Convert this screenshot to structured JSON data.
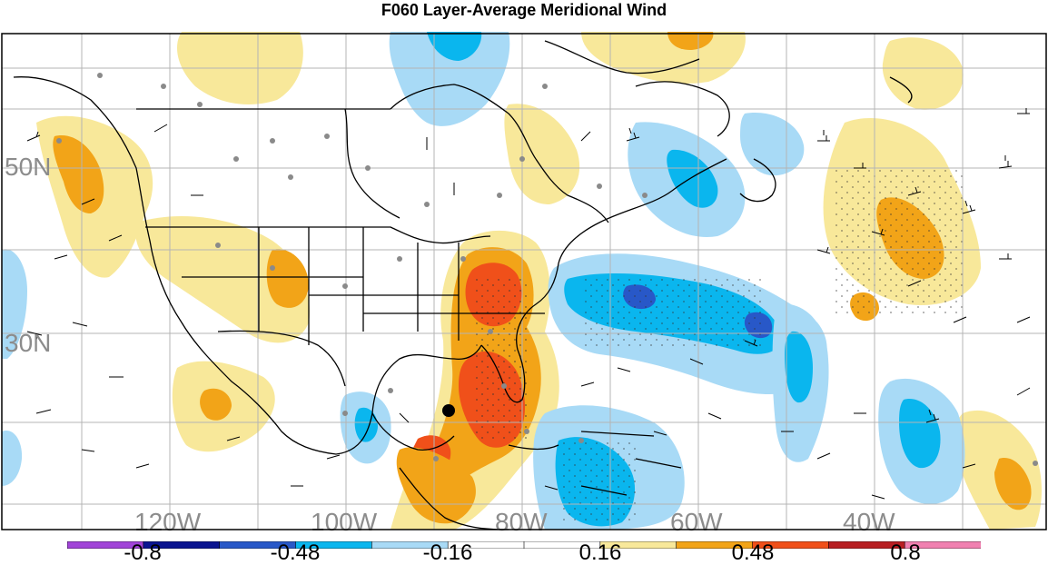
{
  "title": "F060 Layer-Average Meridional Wind",
  "lat_labels": [
    "50N",
    "30N"
  ],
  "lon_labels": [
    "120W",
    "100W",
    "80W",
    "60W",
    "40W"
  ],
  "colorbar": {
    "colors": [
      "#a144d8",
      "#0a1490",
      "#2858c8",
      "#0ab6ee",
      "#a8daf6",
      "#ffffff",
      "#ffffff",
      "#f8e89a",
      "#f2a418",
      "#f0501a",
      "#b81e22",
      "#f080b0"
    ],
    "labels": [
      "-0.8",
      "-0.48",
      "-0.16",
      "0.16",
      "0.48",
      "0.8"
    ]
  },
  "colors": {
    "light_blue": "#a8daf6",
    "cyan": "#0ab6ee",
    "mid_blue": "#2858c8",
    "light_yellow": "#f8e89a",
    "orange": "#f2a418",
    "red_orange": "#f0501a",
    "grid": "#b4b4b4",
    "label_gray": "#8c8c8c"
  },
  "icons": [
    "wind-barb-icon",
    "station-dot-icon",
    "storm-center-icon"
  ]
}
